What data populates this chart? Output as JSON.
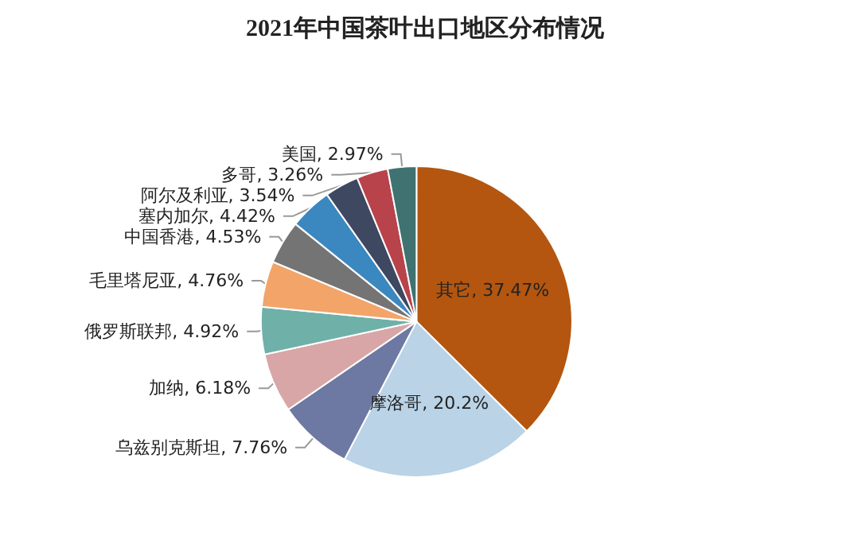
{
  "chart_data": {
    "type": "pie",
    "title": "2021年中国茶叶出口地区分布情况",
    "categories": [
      "其它",
      "摩洛哥",
      "乌兹别克斯坦",
      "加纳",
      "俄罗斯联邦",
      "毛里塔尼亚",
      "中国香港",
      "塞内加尔",
      "阿尔及利亚",
      "多哥",
      "美国"
    ],
    "values": [
      37.47,
      20.2,
      7.76,
      6.18,
      4.92,
      4.76,
      4.53,
      4.42,
      3.54,
      3.26,
      2.97
    ],
    "value_labels": [
      "37.47%",
      "20.2%",
      "7.76%",
      "6.18%",
      "4.92%",
      "4.76%",
      "4.53%",
      "4.42%",
      "3.54%",
      "3.26%",
      "2.97%"
    ],
    "colors": [
      "#b4560f",
      "#bad3e6",
      "#6d79a3",
      "#d8a6a6",
      "#6fb0a8",
      "#f2a469",
      "#747474",
      "#3b87c0",
      "#3e4860",
      "#b8434b",
      "#3f7271"
    ],
    "legend": false
  }
}
